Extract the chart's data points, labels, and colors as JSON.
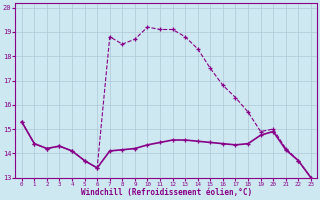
{
  "xlabel": "Windchill (Refroidissement éolien,°C)",
  "background_color": "#cde8f0",
  "grid_color": "#b0c8d8",
  "line_color": "#880088",
  "xlim": [
    -0.5,
    23.5
  ],
  "ylim": [
    13,
    20.2
  ],
  "yticks": [
    13,
    14,
    15,
    16,
    17,
    18,
    19,
    20
  ],
  "xticks": [
    0,
    1,
    2,
    3,
    4,
    5,
    6,
    7,
    8,
    9,
    10,
    11,
    12,
    13,
    14,
    15,
    16,
    17,
    18,
    19,
    20,
    21,
    22,
    23
  ],
  "line1_x": [
    0,
    1,
    2,
    3,
    4,
    5,
    6,
    7,
    8,
    9,
    10,
    11,
    12,
    13,
    14,
    15,
    16,
    17,
    18,
    19,
    20,
    21,
    22,
    23
  ],
  "line1_y": [
    15.3,
    14.4,
    14.2,
    14.3,
    14.1,
    13.7,
    13.4,
    18.8,
    18.5,
    18.7,
    19.2,
    19.1,
    19.1,
    18.8,
    18.3,
    17.5,
    16.8,
    16.3,
    15.7,
    14.9,
    15.0,
    14.2,
    13.7,
    13.0
  ],
  "line2_x": [
    0,
    1,
    2,
    3,
    4,
    5,
    6,
    7,
    8,
    9,
    10,
    11,
    12,
    13,
    14,
    15,
    16,
    17,
    18,
    19,
    20,
    21,
    22,
    23
  ],
  "line2_y": [
    15.3,
    14.4,
    14.2,
    14.3,
    14.1,
    13.7,
    13.4,
    14.1,
    14.15,
    14.2,
    14.35,
    14.45,
    14.55,
    14.55,
    14.5,
    14.45,
    14.4,
    14.35,
    14.4,
    14.75,
    14.9,
    14.15,
    13.7,
    13.0
  ]
}
